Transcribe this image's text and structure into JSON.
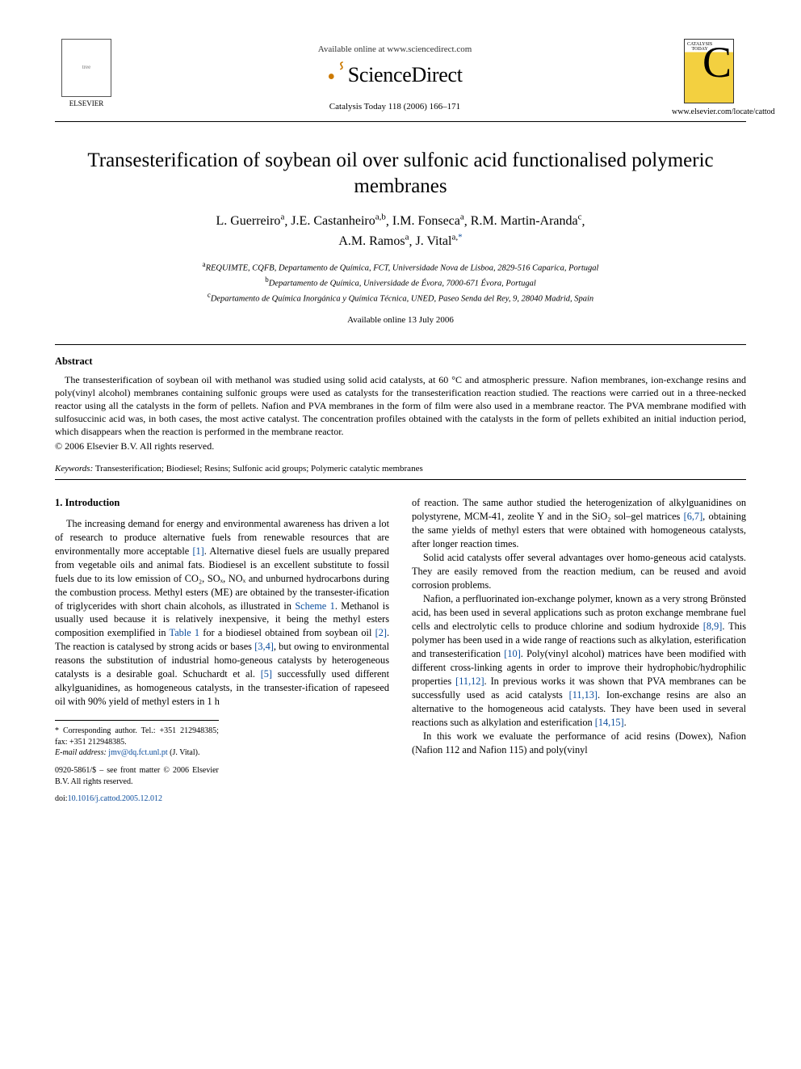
{
  "header": {
    "available_online": "Available online at www.sciencedirect.com",
    "sciencedirect": "ScienceDirect",
    "journal_ref": "Catalysis Today 118 (2006) 166–171",
    "elsevier_label": "ELSEVIER",
    "cover_title_1": "CATALYSIS",
    "cover_title_2": "TODAY",
    "locate_url": "www.elsevier.com/locate/cattod"
  },
  "title": "Transesterification of soybean oil over sulfonic acid functionalised polymeric membranes",
  "authors": {
    "line1_names": [
      "L. Guerreiro",
      "J.E. Castanheiro",
      "I.M. Fonseca",
      "R.M. Martin-Aranda"
    ],
    "line1_sups": [
      "a",
      "a,b",
      "a",
      "c"
    ],
    "line2_names": [
      "A.M. Ramos",
      "J. Vital"
    ],
    "line2_sups": [
      "a",
      "a,"
    ],
    "corr_mark": "*"
  },
  "affiliations": [
    {
      "sup": "a",
      "text": "REQUIMTE, CQFB, Departamento de Química, FCT, Universidade Nova de Lisboa, 2829-516 Caparica, Portugal"
    },
    {
      "sup": "b",
      "text": "Departamento de Química, Universidade de Évora, 7000-671 Évora, Portugal"
    },
    {
      "sup": "c",
      "text": "Departamento de Química Inorgánica y Química Técnica, UNED, Paseo Senda del Rey, 9, 28040 Madrid, Spain"
    }
  ],
  "available_date": "Available online 13 July 2006",
  "abstract_label": "Abstract",
  "abstract": "The transesterification of soybean oil with methanol was studied using solid acid catalysts, at 60 °C and atmospheric pressure. Nafion membranes, ion-exchange resins and poly(vinyl alcohol) membranes containing sulfonic groups were used as catalysts for the transesterification reaction studied. The reactions were carried out in a three-necked reactor using all the catalysts in the form of pellets. Nafion and PVA membranes in the form of film were also used in a membrane reactor. The PVA membrane modified with sulfosuccinic acid was, in both cases, the most active catalyst. The concentration profiles obtained with the catalysts in the form of pellets exhibited an initial induction period, which disappears when the reaction is performed in the membrane reactor.",
  "copyright": "© 2006 Elsevier B.V. All rights reserved.",
  "keywords_label": "Keywords:",
  "keywords": "Transesterification; Biodiesel; Resins; Sulfonic acid groups; Polymeric catalytic membranes",
  "section1_head": "1. Introduction",
  "col_left": {
    "p1_a": "The increasing demand for energy and environmental awareness has driven a lot of research to produce alternative fuels from renewable resources that are environmentally more acceptable ",
    "ref1": "[1]",
    "p1_b": ". Alternative diesel fuels are usually prepared from vegetable oils and animal fats. Biodiesel is an excellent substitute to fossil fuels due to its low emission of CO₂, SOₓ, NOₓ and unburned hydrocarbons during the combustion process. Methyl esters (ME) are obtained by the transester-ification of triglycerides with short chain alcohols, as illustrated in ",
    "scheme1": "Scheme 1",
    "p1_c": ". Methanol is usually used because it is relatively inexpensive, it being the methyl esters composition exemplified in ",
    "table1": "Table 1",
    "p1_d": " for a biodiesel obtained from soybean oil ",
    "ref2": "[2]",
    "p1_e": ". The reaction is catalysed by strong acids or bases ",
    "ref34": "[3,4]",
    "p1_f": ", but owing to environmental reasons the substitution of industrial homo-geneous catalysts by heterogeneous catalysts is a desirable goal. Schuchardt et al. ",
    "ref5": "[5]",
    "p1_g": " successfully used different alkylguanidines, as homogeneous catalysts, in the transester-ification of rapeseed oil with 90% yield of methyl esters in 1 h"
  },
  "col_right": {
    "p1_a": "of reaction. The same author studied the heterogenization of alkylguanidines on polystyrene, MCM-41, zeolite Y and in the SiO₂ sol–gel matrices ",
    "ref67": "[6,7]",
    "p1_b": ", obtaining the same yields of methyl esters that were obtained with homogeneous catalysts, after longer reaction times.",
    "p2": "Solid acid catalysts offer several advantages over homo-geneous acid catalysts. They are easily removed from the reaction medium, can be reused and avoid corrosion problems.",
    "p3_a": "Nafion, a perfluorinated ion-exchange polymer, known as a very strong Brönsted acid, has been used in several applications such as proton exchange membrane fuel cells and electrolytic cells to produce chlorine and sodium hydroxide ",
    "ref89": "[8,9]",
    "p3_b": ". This polymer has been used in a wide range of reactions such as alkylation, esterification and transesterification ",
    "ref10": "[10]",
    "p3_c": ". Poly(vinyl alcohol) matrices have been modified with different cross-linking agents in order to improve their hydrophobic/hydrophilic properties ",
    "ref1112": "[11,12]",
    "p3_d": ". In previous works it was shown that PVA membranes can be successfully used as acid catalysts ",
    "ref1113": "[11,13]",
    "p3_e": ". Ion-exchange resins are also an alternative to the homogeneous acid catalysts. They have been used in several reactions such as alkylation and esterification ",
    "ref1415": "[14,15]",
    "p3_f": ".",
    "p4": "In this work we evaluate the performance of acid resins (Dowex), Nafion (Nafion 112 and Nafion 115) and poly(vinyl"
  },
  "footer": {
    "corr": "* Corresponding author. Tel.: +351 212948385; fax: +351 212948385.",
    "email_label": "E-mail address:",
    "email": "jmv@dq.fct.unl.pt",
    "email_paren": " (J. Vital).",
    "front_matter": "0920-5861/$ – see front matter © 2006 Elsevier B.V. All rights reserved.",
    "doi_label": "doi:",
    "doi": "10.1016/j.cattod.2005.12.012"
  },
  "colors": {
    "link": "#0a4c9c",
    "text": "#000000",
    "bg": "#ffffff"
  }
}
